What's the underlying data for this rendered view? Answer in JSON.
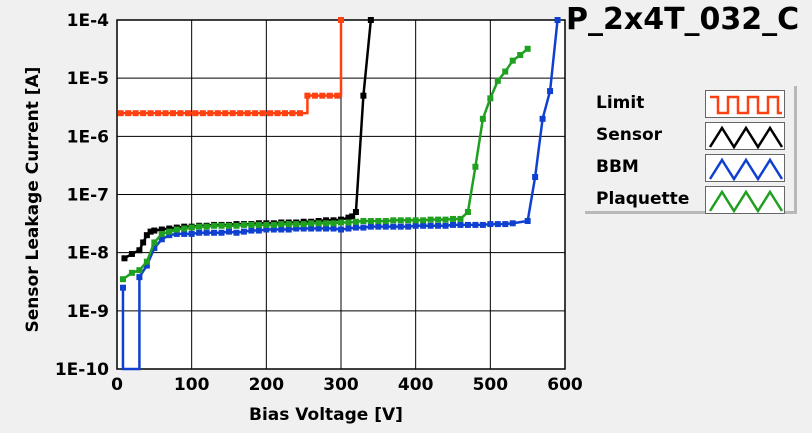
{
  "title": "P_2x4T_032_C",
  "chart_data": {
    "type": "line",
    "xlabel": "Bias Voltage [V]",
    "ylabel": "Sensor Leakage Current [A]",
    "xlim": [
      0,
      600
    ],
    "ylim": [
      1e-10,
      0.0001
    ],
    "yscale": "log",
    "grid": true,
    "legend_position": "right",
    "x_ticks": [
      "0",
      "100",
      "200",
      "300",
      "400",
      "500",
      "600"
    ],
    "y_ticks": [
      "1E-10",
      "1E-9",
      "1E-8",
      "1E-7",
      "1E-6",
      "1E-5",
      "1E-4"
    ],
    "series": [
      {
        "name": "Limit",
        "color": "#ff4010",
        "step": true,
        "points": [
          [
            5,
            2.5e-06
          ],
          [
            15,
            2.5e-06
          ],
          [
            25,
            2.5e-06
          ],
          [
            35,
            2.5e-06
          ],
          [
            45,
            2.5e-06
          ],
          [
            55,
            2.5e-06
          ],
          [
            65,
            2.5e-06
          ],
          [
            75,
            2.5e-06
          ],
          [
            85,
            2.5e-06
          ],
          [
            95,
            2.5e-06
          ],
          [
            105,
            2.5e-06
          ],
          [
            115,
            2.5e-06
          ],
          [
            125,
            2.5e-06
          ],
          [
            135,
            2.5e-06
          ],
          [
            145,
            2.5e-06
          ],
          [
            155,
            2.5e-06
          ],
          [
            165,
            2.5e-06
          ],
          [
            175,
            2.5e-06
          ],
          [
            185,
            2.5e-06
          ],
          [
            195,
            2.5e-06
          ],
          [
            205,
            2.5e-06
          ],
          [
            215,
            2.5e-06
          ],
          [
            225,
            2.5e-06
          ],
          [
            235,
            2.5e-06
          ],
          [
            245,
            2.5e-06
          ],
          [
            255,
            5e-06
          ],
          [
            265,
            5e-06
          ],
          [
            275,
            5e-06
          ],
          [
            285,
            5e-06
          ],
          [
            295,
            5e-06
          ],
          [
            300,
            0.0001
          ]
        ]
      },
      {
        "name": "Sensor",
        "color": "#000000",
        "step": false,
        "points": [
          [
            10,
            8e-09
          ],
          [
            20,
            9.5e-09
          ],
          [
            30,
            1.1e-08
          ],
          [
            35,
            1.5e-08
          ],
          [
            40,
            2e-08
          ],
          [
            45,
            2.3e-08
          ],
          [
            50,
            2.4e-08
          ],
          [
            60,
            2.5e-08
          ],
          [
            70,
            2.6e-08
          ],
          [
            80,
            2.7e-08
          ],
          [
            90,
            2.8e-08
          ],
          [
            100,
            2.8e-08
          ],
          [
            110,
            2.9e-08
          ],
          [
            120,
            2.9e-08
          ],
          [
            130,
            3e-08
          ],
          [
            140,
            3e-08
          ],
          [
            150,
            3e-08
          ],
          [
            160,
            3.1e-08
          ],
          [
            170,
            3.1e-08
          ],
          [
            180,
            3.1e-08
          ],
          [
            190,
            3.2e-08
          ],
          [
            200,
            3.2e-08
          ],
          [
            210,
            3.2e-08
          ],
          [
            220,
            3.3e-08
          ],
          [
            230,
            3.3e-08
          ],
          [
            240,
            3.3e-08
          ],
          [
            250,
            3.4e-08
          ],
          [
            260,
            3.4e-08
          ],
          [
            270,
            3.5e-08
          ],
          [
            280,
            3.6e-08
          ],
          [
            290,
            3.6e-08
          ],
          [
            300,
            3.7e-08
          ],
          [
            310,
            4e-08
          ],
          [
            315,
            4.2e-08
          ],
          [
            320,
            5e-08
          ],
          [
            330,
            5e-06
          ],
          [
            340,
            0.0001
          ]
        ]
      },
      {
        "name": "BBM",
        "color": "#1040d0",
        "step": false,
        "points": [
          [
            8,
            2.5e-09
          ],
          [
            8,
            1e-10
          ],
          [
            30,
            1e-10
          ],
          [
            30,
            3.8e-09
          ],
          [
            40,
            6e-09
          ],
          [
            50,
            1.2e-08
          ],
          [
            60,
            1.7e-08
          ],
          [
            70,
            2e-08
          ],
          [
            80,
            2.1e-08
          ],
          [
            90,
            2.1e-08
          ],
          [
            100,
            2.1e-08
          ],
          [
            110,
            2.2e-08
          ],
          [
            120,
            2.2e-08
          ],
          [
            130,
            2.2e-08
          ],
          [
            140,
            2.2e-08
          ],
          [
            150,
            2.3e-08
          ],
          [
            160,
            2.2e-08
          ],
          [
            170,
            2.3e-08
          ],
          [
            180,
            2.4e-08
          ],
          [
            190,
            2.4e-08
          ],
          [
            200,
            2.5e-08
          ],
          [
            210,
            2.5e-08
          ],
          [
            220,
            2.5e-08
          ],
          [
            230,
            2.5e-08
          ],
          [
            240,
            2.6e-08
          ],
          [
            250,
            2.6e-08
          ],
          [
            260,
            2.6e-08
          ],
          [
            270,
            2.6e-08
          ],
          [
            280,
            2.6e-08
          ],
          [
            290,
            2.6e-08
          ],
          [
            300,
            2.5e-08
          ],
          [
            310,
            2.6e-08
          ],
          [
            320,
            2.7e-08
          ],
          [
            330,
            2.7e-08
          ],
          [
            340,
            2.8e-08
          ],
          [
            350,
            2.8e-08
          ],
          [
            360,
            2.8e-08
          ],
          [
            370,
            2.8e-08
          ],
          [
            380,
            2.8e-08
          ],
          [
            390,
            2.8e-08
          ],
          [
            400,
            2.9e-08
          ],
          [
            410,
            2.9e-08
          ],
          [
            420,
            2.9e-08
          ],
          [
            430,
            2.9e-08
          ],
          [
            440,
            2.9e-08
          ],
          [
            450,
            3e-08
          ],
          [
            460,
            3e-08
          ],
          [
            470,
            3e-08
          ],
          [
            480,
            3e-08
          ],
          [
            490,
            3e-08
          ],
          [
            500,
            3.1e-08
          ],
          [
            510,
            3.1e-08
          ],
          [
            520,
            3.1e-08
          ],
          [
            530,
            3.2e-08
          ],
          [
            550,
            3.5e-08
          ],
          [
            560,
            2e-07
          ],
          [
            570,
            2e-06
          ],
          [
            580,
            6e-06
          ],
          [
            590,
            0.0001
          ]
        ]
      },
      {
        "name": "Plaquette",
        "color": "#20a020",
        "step": false,
        "points": [
          [
            8,
            3.5e-09
          ],
          [
            20,
            4.5e-09
          ],
          [
            30,
            5e-09
          ],
          [
            40,
            7e-09
          ],
          [
            50,
            1.5e-08
          ],
          [
            60,
            2.1e-08
          ],
          [
            70,
            2.3e-08
          ],
          [
            80,
            2.5e-08
          ],
          [
            90,
            2.6e-08
          ],
          [
            100,
            2.7e-08
          ],
          [
            110,
            2.8e-08
          ],
          [
            120,
            2.8e-08
          ],
          [
            130,
            2.9e-08
          ],
          [
            140,
            2.9e-08
          ],
          [
            150,
            2.9e-08
          ],
          [
            160,
            2.9e-08
          ],
          [
            170,
            3e-08
          ],
          [
            180,
            3e-08
          ],
          [
            190,
            3e-08
          ],
          [
            200,
            3e-08
          ],
          [
            210,
            3e-08
          ],
          [
            220,
            3.1e-08
          ],
          [
            230,
            3.1e-08
          ],
          [
            240,
            3.1e-08
          ],
          [
            250,
            3.1e-08
          ],
          [
            260,
            3.2e-08
          ],
          [
            270,
            3.2e-08
          ],
          [
            280,
            3.2e-08
          ],
          [
            290,
            3.2e-08
          ],
          [
            300,
            3.3e-08
          ],
          [
            310,
            3.3e-08
          ],
          [
            320,
            3.4e-08
          ],
          [
            330,
            3.5e-08
          ],
          [
            340,
            3.5e-08
          ],
          [
            350,
            3.5e-08
          ],
          [
            360,
            3.5e-08
          ],
          [
            370,
            3.6e-08
          ],
          [
            380,
            3.6e-08
          ],
          [
            390,
            3.6e-08
          ],
          [
            400,
            3.6e-08
          ],
          [
            410,
            3.6e-08
          ],
          [
            420,
            3.7e-08
          ],
          [
            430,
            3.7e-08
          ],
          [
            440,
            3.7e-08
          ],
          [
            450,
            3.8e-08
          ],
          [
            460,
            3.8e-08
          ],
          [
            470,
            5e-08
          ],
          [
            480,
            3e-07
          ],
          [
            490,
            2e-06
          ],
          [
            500,
            4.5e-06
          ],
          [
            510,
            9e-06
          ],
          [
            520,
            1.3e-05
          ],
          [
            530,
            2e-05
          ],
          [
            540,
            2.5e-05
          ],
          [
            550,
            3.2e-05
          ]
        ]
      }
    ]
  }
}
